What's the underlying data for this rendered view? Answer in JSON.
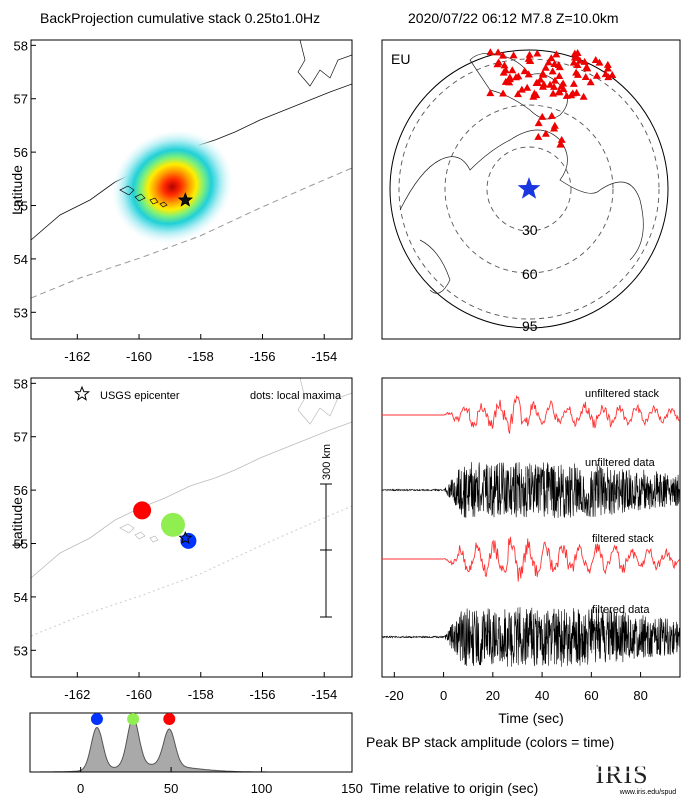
{
  "header": {
    "left_title": "BackProjection cumulative stack 0.25to1.0Hz",
    "right_title": "2020/07/22 06:12   M7.8   Z=10.0km"
  },
  "chart_data": [
    {
      "id": "bp-cumulative-map",
      "type": "heatmap",
      "ylabel": "Latitude",
      "xlim": [
        -163.5,
        -153.1
      ],
      "ylim": [
        52.5,
        58.1
      ],
      "xticks": [
        "-162",
        "-160",
        "-158",
        "-156",
        "-154"
      ],
      "yticks": [
        "53",
        "54",
        "55",
        "56",
        "57",
        "58"
      ],
      "epicenter": {
        "lon": -158.5,
        "lat": 55.1
      },
      "peak": {
        "lon": -158.6,
        "lat": 55.2
      }
    },
    {
      "id": "station-map",
      "type": "scatter",
      "label": "EU",
      "ring_labels": [
        "30",
        "60",
        "95"
      ],
      "source_marker": "star"
    },
    {
      "id": "local-maxima-map",
      "type": "scatter",
      "ylabel": "Latitude",
      "legend": "USGS epicenter",
      "note": "dots: local maxima",
      "scale_label": "300 km",
      "xticks": [
        "-162",
        "-160",
        "-158",
        "-156",
        "-154"
      ],
      "yticks": [
        "53",
        "54",
        "55",
        "56",
        "57",
        "58"
      ],
      "points": [
        {
          "lon": -159.9,
          "lat": 55.62,
          "color": "#ff0000",
          "time": 49
        },
        {
          "lon": -158.9,
          "lat": 55.35,
          "color": "#90ee50",
          "time": 29
        },
        {
          "lon": -158.4,
          "lat": 55.05,
          "color": "#0033ff",
          "time": 9
        }
      ],
      "epicenter": {
        "lon": -158.5,
        "lat": 55.1
      }
    },
    {
      "id": "waveforms",
      "type": "line",
      "xlabel": "Time (sec)",
      "xlim": [
        -25,
        96
      ],
      "xticks": [
        "-20",
        "0",
        "20",
        "40",
        "60",
        "80"
      ],
      "traces": [
        {
          "name": "unfiltered stack",
          "color": "#ff3333"
        },
        {
          "name": "unfiltered data",
          "color": "#000000"
        },
        {
          "name": "filtered stack",
          "color": "#ff3333"
        },
        {
          "name": "filtered data",
          "color": "#000000"
        }
      ]
    },
    {
      "id": "peak-amplitude",
      "type": "area",
      "title": "Peak BP stack amplitude (colors = time)",
      "xlabel": "Time relative to origin (sec)",
      "xlim": [
        -28,
        150
      ],
      "xticks": [
        "0",
        "50",
        "100",
        "150"
      ],
      "peaks": [
        {
          "time": 9,
          "value": 0.72,
          "color": "#0033ff"
        },
        {
          "time": 29,
          "value": 0.82,
          "color": "#90ee50"
        },
        {
          "time": 49,
          "value": 0.62,
          "color": "#ff0000"
        }
      ]
    }
  ],
  "logo": {
    "name": "IRIS",
    "url": "www.iris.edu/spud"
  }
}
